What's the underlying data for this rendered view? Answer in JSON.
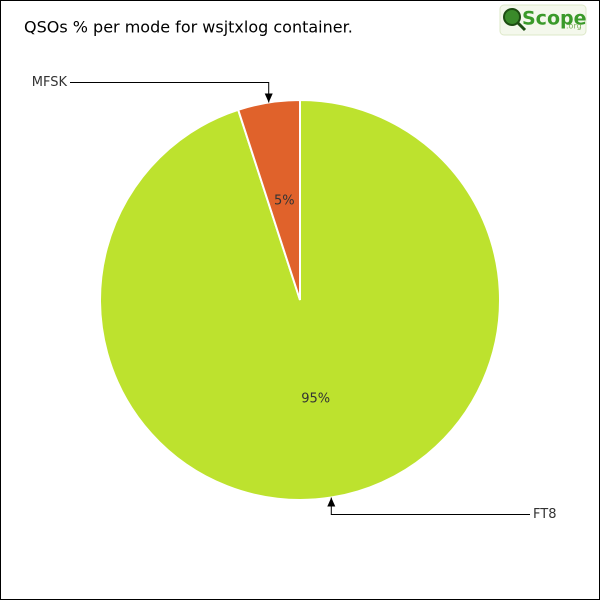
{
  "chart_data": {
    "type": "pie",
    "title": "QSOs % per mode for wsjtxlog container.",
    "logo": "Scope",
    "logo_suffix": ".org",
    "categories": [
      "FT8",
      "MFSK"
    ],
    "values": [
      95,
      5
    ],
    "value_labels": [
      "95%",
      "5%"
    ],
    "colors": [
      "#bde22e",
      "#e0622b"
    ]
  }
}
